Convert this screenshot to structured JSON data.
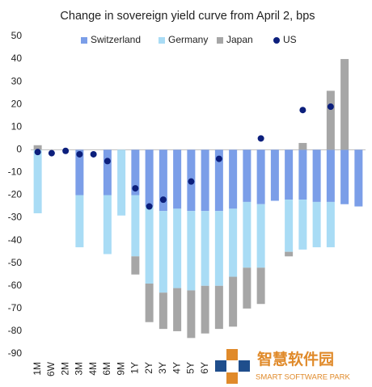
{
  "chart_data": {
    "type": "bar",
    "stacked": true,
    "title": "Change in sovereign yield curve from April 2, bps",
    "categories": [
      "1M",
      "6W",
      "2M",
      "3M",
      "4M",
      "6M",
      "9M",
      "1Y",
      "2Y",
      "3Y",
      "4Y",
      "5Y",
      "6Y",
      null,
      null,
      null,
      null,
      null,
      null,
      null,
      null,
      null,
      null,
      null
    ],
    "series": [
      {
        "name": "Switzerland",
        "color": "#7b9ee8",
        "type": "bar",
        "values": [
          0,
          null,
          null,
          -20,
          null,
          -20,
          null,
          -20,
          -25,
          -27,
          -26,
          -27,
          -27,
          -27,
          -26,
          -23,
          -24,
          -22.5,
          -22,
          -22,
          -23,
          -23,
          -24,
          -25
        ]
      },
      {
        "name": "Germany",
        "color": "#a9dcf5",
        "type": "bar",
        "values": [
          -28,
          null,
          null,
          -23,
          null,
          -26,
          -29,
          -27,
          -34,
          -36,
          -35,
          -35,
          -33,
          -33,
          -30,
          -29,
          -28,
          null,
          -23,
          -22,
          -20,
          -20,
          null,
          null
        ]
      },
      {
        "name": "Japan",
        "color": "#a6a6a6",
        "type": "bar",
        "values": [
          2,
          null,
          null,
          null,
          null,
          null,
          null,
          -8,
          -17,
          -16,
          -19,
          -21,
          -21,
          -19,
          -22,
          -18,
          -16,
          null,
          -2,
          3,
          null,
          26,
          40,
          null
        ]
      },
      {
        "name": "US",
        "color": "#0c1f7c",
        "type": "scatter",
        "values": [
          -1,
          -1.5,
          -0.5,
          -2,
          -2,
          -5,
          null,
          -17,
          -25,
          -22,
          null,
          -14,
          null,
          -4,
          null,
          null,
          5,
          null,
          null,
          17.5,
          null,
          19,
          null,
          null
        ]
      }
    ],
    "ylim": [
      -90,
      50
    ],
    "yticks": [
      50,
      40,
      30,
      20,
      10,
      0,
      -10,
      -20,
      -30,
      -40,
      -50,
      -60,
      -70,
      -80,
      -90
    ],
    "legend": "top",
    "watermark": {
      "title": "智慧软件园",
      "subtitle": "SMART SOFTWARE PARK"
    }
  }
}
